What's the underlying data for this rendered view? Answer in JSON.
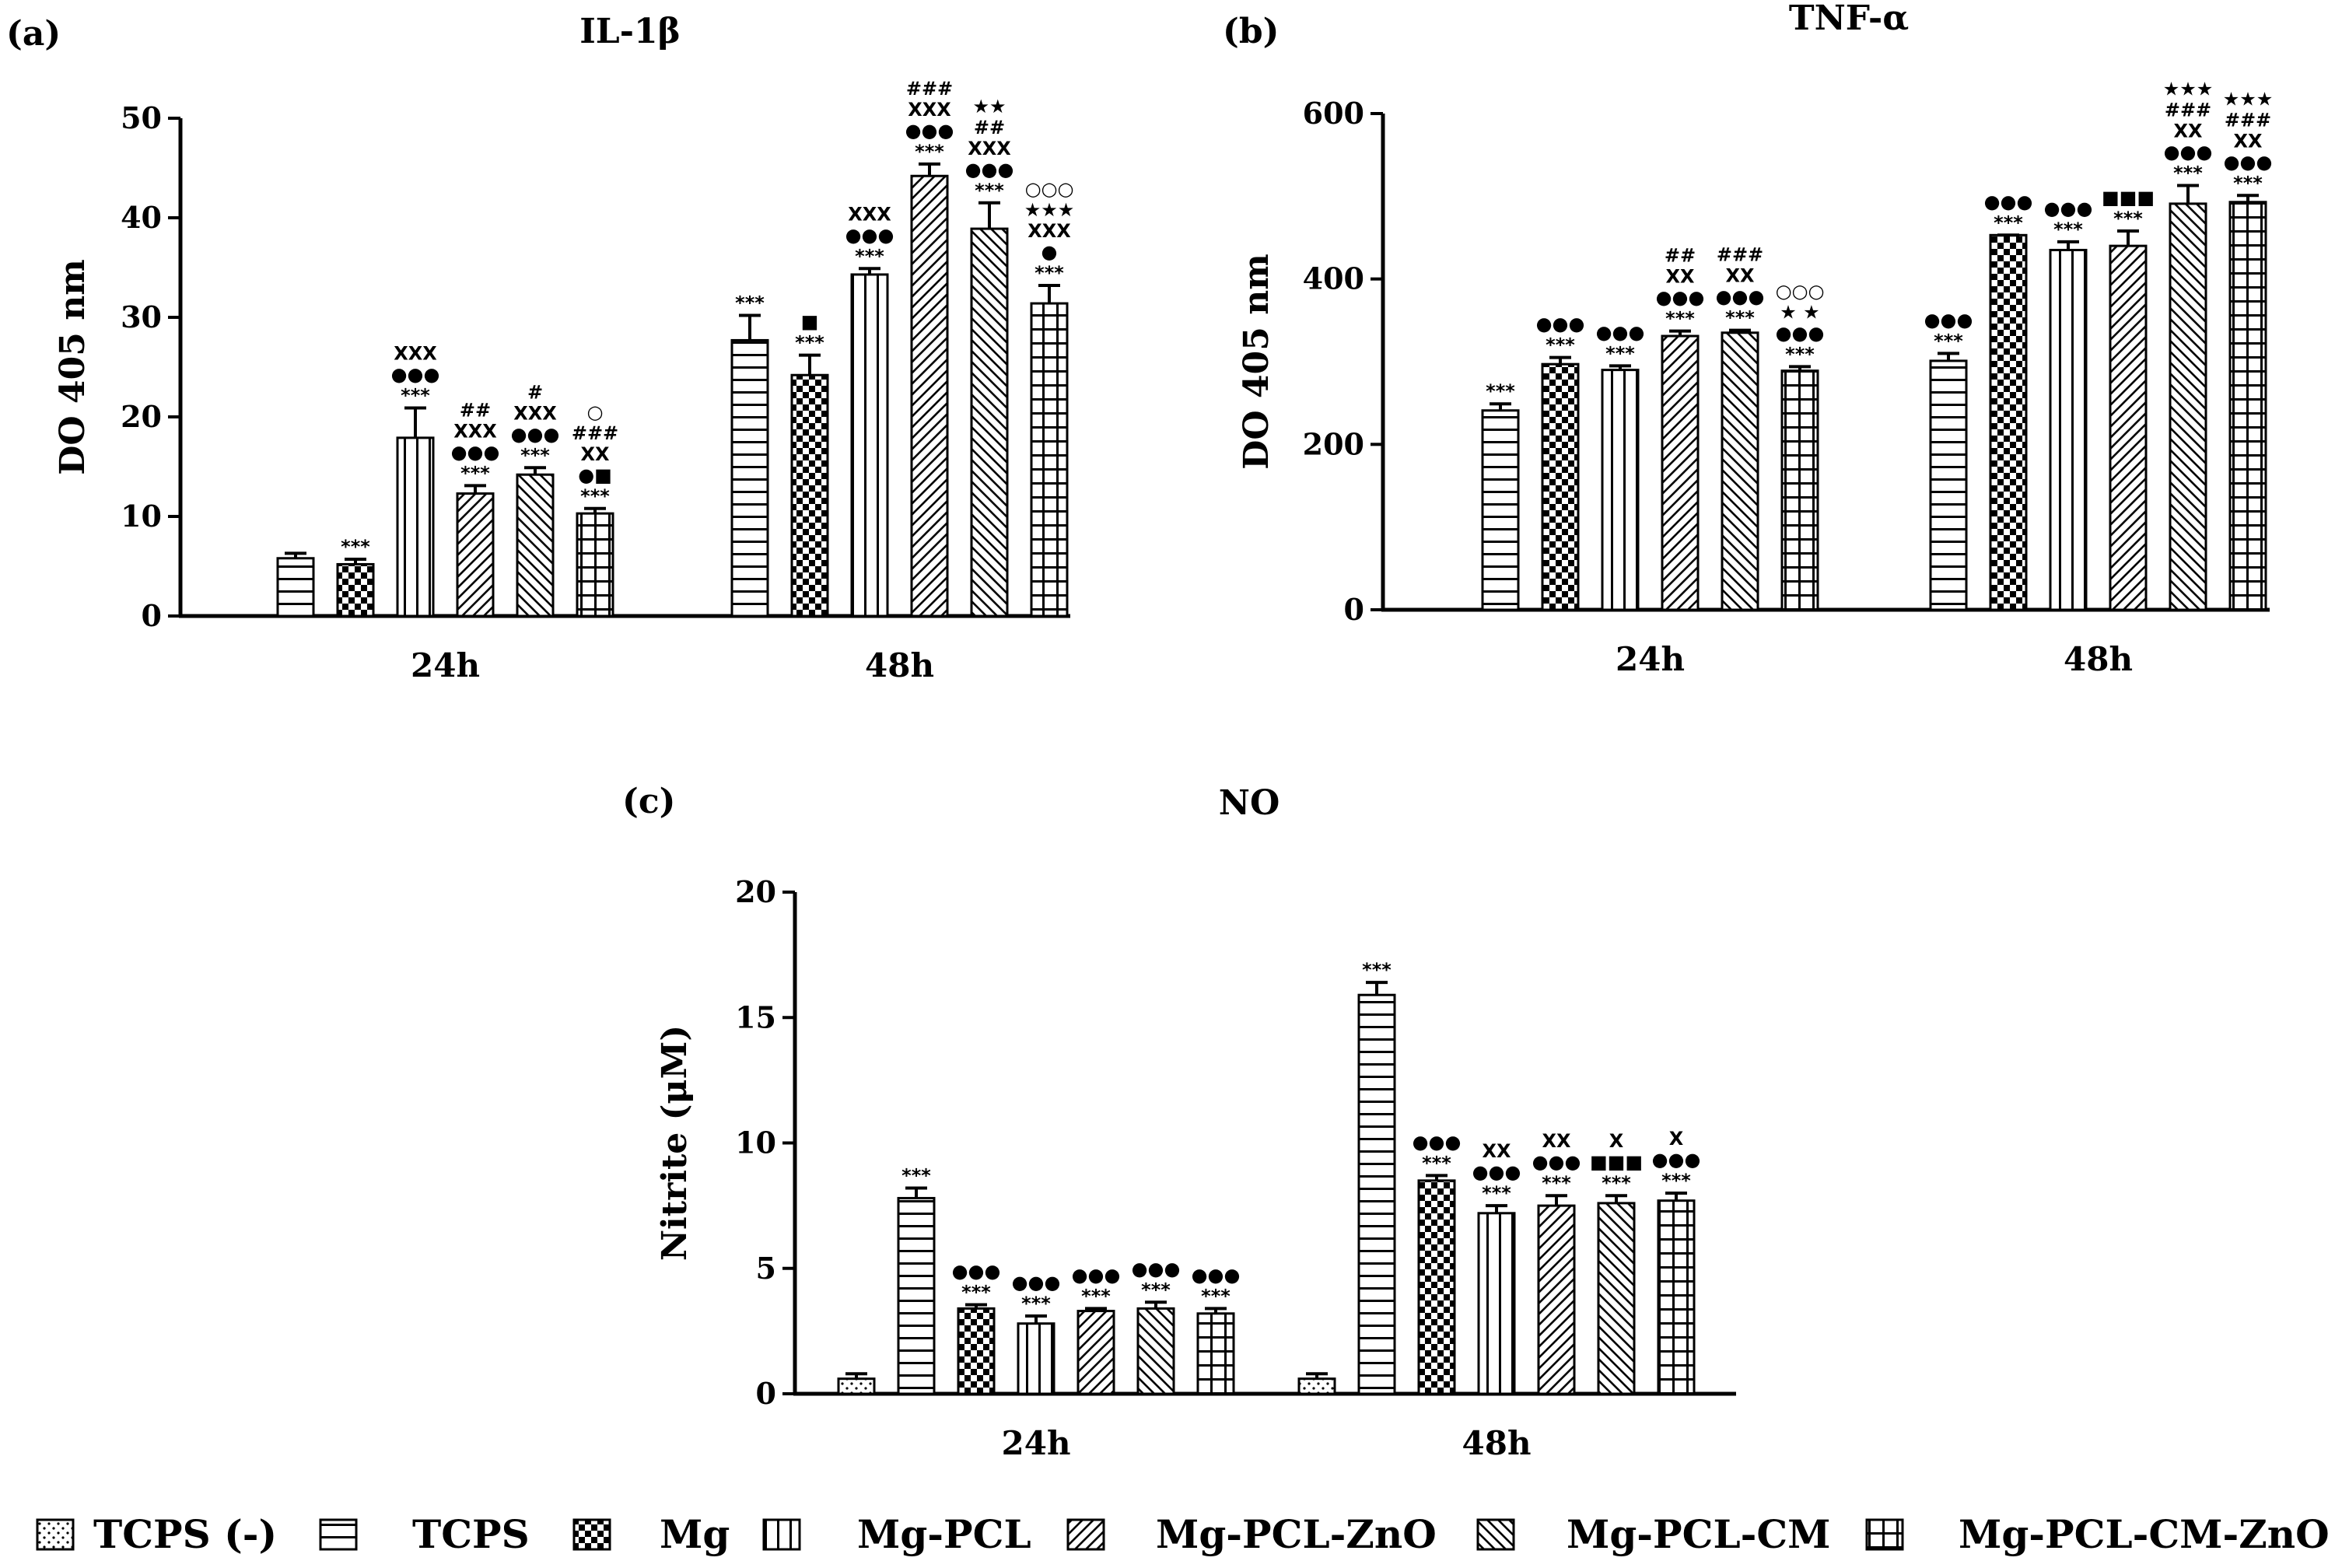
{
  "legend": [
    {
      "label": "TCPS (-)",
      "pattern": "dots"
    },
    {
      "label": "TCPS",
      "pattern": "hlines"
    },
    {
      "label": "Mg",
      "pattern": "checker"
    },
    {
      "label": "Mg-PCL",
      "pattern": "vlines"
    },
    {
      "label": "Mg-PCL-ZnO",
      "pattern": "diag-up"
    },
    {
      "label": "Mg-PCL-CM",
      "pattern": "diag-down"
    },
    {
      "label": "Mg-PCL-CM-ZnO",
      "pattern": "grid"
    }
  ],
  "chart_data": [
    {
      "panel": "(a)",
      "type": "bar",
      "title": "IL-1β",
      "ylabel": "DO 405 nm",
      "xlabel": "",
      "ylim": [
        0,
        50
      ],
      "yticks": [
        0,
        10,
        20,
        30,
        40,
        50
      ],
      "categories": [
        "24h",
        "48h"
      ],
      "series": [
        {
          "name": "TCPS",
          "pattern": "hlines",
          "values": [
            5.8,
            27.7
          ],
          "errors": [
            0.5,
            2.5
          ],
          "sig": [
            [],
            [
              "***"
            ]
          ]
        },
        {
          "name": "Mg",
          "pattern": "checker",
          "values": [
            5.2,
            24.2
          ],
          "errors": [
            0.5,
            2.0
          ],
          "sig": [
            [
              "***"
            ],
            [
              "***",
              "■"
            ]
          ]
        },
        {
          "name": "Mg-PCL",
          "pattern": "vlines",
          "values": [
            17.9,
            34.3
          ],
          "errors": [
            3.0,
            0.6
          ],
          "sig": [
            [
              "***",
              "●●●",
              "XXX"
            ],
            [
              "***",
              "●●●",
              "XXX"
            ]
          ]
        },
        {
          "name": "Mg-PCL-ZnO",
          "pattern": "diag-up",
          "values": [
            12.3,
            44.2
          ],
          "errors": [
            0.8,
            1.2
          ],
          "sig": [
            [
              "***",
              "●●●",
              "XXX",
              "##"
            ],
            [
              "***",
              "●●●",
              "XXX",
              "###"
            ]
          ]
        },
        {
          "name": "Mg-PCL-CM",
          "pattern": "diag-down",
          "values": [
            14.2,
            38.9
          ],
          "errors": [
            0.7,
            2.6
          ],
          "sig": [
            [
              "***",
              "●●●",
              "XXX",
              "#"
            ],
            [
              "***",
              "●●●",
              "XXX",
              "##",
              "★★"
            ]
          ]
        },
        {
          "name": "Mg-PCL-CM-ZnO",
          "pattern": "grid",
          "values": [
            10.3,
            31.4
          ],
          "errors": [
            0.5,
            1.8
          ],
          "sig": [
            [
              "***",
              "●■",
              "XX",
              "###",
              "○"
            ],
            [
              "***",
              "●",
              "XXX",
              "★★★",
              "○○○"
            ]
          ]
        }
      ]
    },
    {
      "panel": "(b)",
      "type": "bar",
      "title": "TNF-α",
      "ylabel": "DO 405 nm",
      "xlabel": "",
      "ylim": [
        0,
        600
      ],
      "yticks": [
        0,
        200,
        400,
        600
      ],
      "categories": [
        "24h",
        "48h"
      ],
      "series": [
        {
          "name": "TCPS",
          "pattern": "hlines",
          "values": [
            241,
            301
          ],
          "errors": [
            8,
            9
          ],
          "sig": [
            [
              "***"
            ],
            [
              "***",
              "●●●"
            ]
          ]
        },
        {
          "name": "Mg",
          "pattern": "checker",
          "values": [
            297,
            453
          ],
          "errors": [
            8,
            0
          ],
          "sig": [
            [
              "***",
              "●●●"
            ],
            [
              "***",
              "●●●"
            ]
          ]
        },
        {
          "name": "Mg-PCL",
          "pattern": "vlines",
          "values": [
            290,
            435
          ],
          "errors": [
            5,
            10
          ],
          "sig": [
            [
              "***",
              "●●●"
            ],
            [
              "***",
              "●●●"
            ]
          ]
        },
        {
          "name": "Mg-PCL-ZnO",
          "pattern": "diag-up",
          "values": [
            331,
            440
          ],
          "errors": [
            6,
            18
          ],
          "sig": [
            [
              "***",
              "●●●",
              "XX",
              "##"
            ],
            [
              "***",
              "■■■"
            ]
          ]
        },
        {
          "name": "Mg-PCL-CM",
          "pattern": "diag-down",
          "values": [
            335,
            491
          ],
          "errors": [
            3,
            22
          ],
          "sig": [
            [
              "***",
              "●●●",
              "XX",
              "###"
            ],
            [
              "***",
              "●●●",
              "XX",
              "###",
              "★★★"
            ]
          ]
        },
        {
          "name": "Mg-PCL-CM-ZnO",
          "pattern": "grid",
          "values": [
            289,
            493
          ],
          "errors": [
            5,
            8
          ],
          "sig": [
            [
              "***",
              "●●●",
              "★ ★",
              "○○○"
            ],
            [
              "***",
              "●●●",
              "XX",
              "###",
              "★★★"
            ]
          ]
        }
      ]
    },
    {
      "panel": "(c)",
      "type": "bar",
      "title": "NO",
      "ylabel": "Nitrite (μM)",
      "xlabel": "",
      "ylim": [
        0,
        20
      ],
      "yticks": [
        0,
        5,
        10,
        15,
        20
      ],
      "categories": [
        "24h",
        "48h"
      ],
      "series": [
        {
          "name": "TCPS (-)",
          "pattern": "dots",
          "values": [
            0.6,
            0.6
          ],
          "errors": [
            0.2,
            0.2
          ],
          "sig": [
            [],
            []
          ]
        },
        {
          "name": "TCPS",
          "pattern": "hlines",
          "values": [
            7.8,
            15.9
          ],
          "errors": [
            0.4,
            0.5
          ],
          "sig": [
            [
              "***"
            ],
            [
              "***"
            ]
          ]
        },
        {
          "name": "Mg",
          "pattern": "checker",
          "values": [
            3.4,
            8.5
          ],
          "errors": [
            0.15,
            0.2
          ],
          "sig": [
            [
              "***",
              "●●●"
            ],
            [
              "***",
              "●●●"
            ]
          ]
        },
        {
          "name": "Mg-PCL",
          "pattern": "vlines",
          "values": [
            2.8,
            7.2
          ],
          "errors": [
            0.3,
            0.3
          ],
          "sig": [
            [
              "***",
              "●●●"
            ],
            [
              "***",
              "●●●",
              "XX"
            ]
          ]
        },
        {
          "name": "Mg-PCL-ZnO",
          "pattern": "diag-up",
          "values": [
            3.3,
            7.5
          ],
          "errors": [
            0.1,
            0.4
          ],
          "sig": [
            [
              "***",
              "●●●"
            ],
            [
              "***",
              "●●●",
              "XX"
            ]
          ]
        },
        {
          "name": "Mg-PCL-CM",
          "pattern": "diag-down",
          "values": [
            3.4,
            7.6
          ],
          "errors": [
            0.25,
            0.3
          ],
          "sig": [
            [
              "***",
              "●●●"
            ],
            [
              "***",
              "■■■",
              "X"
            ]
          ]
        },
        {
          "name": "Mg-PCL-CM-ZnO",
          "pattern": "grid",
          "values": [
            3.2,
            7.7
          ],
          "errors": [
            0.2,
            0.3
          ],
          "sig": [
            [
              "***",
              "●●●"
            ],
            [
              "***",
              "●●●",
              "X"
            ]
          ]
        }
      ]
    }
  ]
}
